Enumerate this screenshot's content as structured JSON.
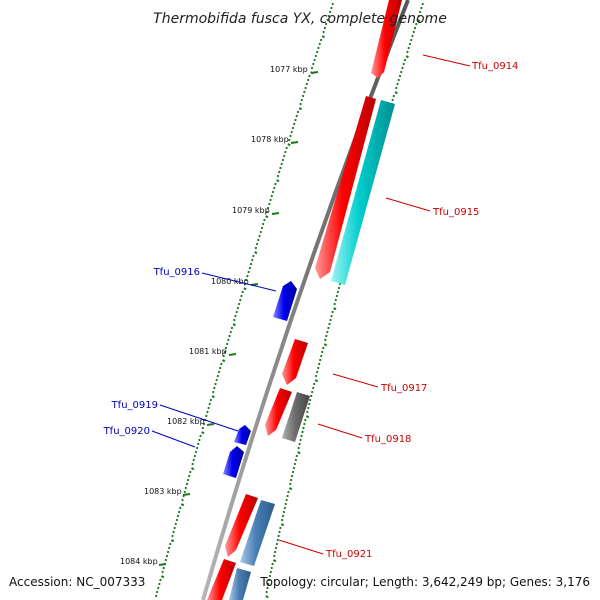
{
  "title": "Thermobifida fusca YX, complete genome",
  "accession": "Accession: NC_007333",
  "summary": "Topology: circular; Length: 3,642,249 bp; Genes: 3,176",
  "colors": {
    "backbone": "#808080",
    "forward_gene": "#ff0000",
    "reverse_gene": "#0000ff",
    "cyan_track": "#00cccc",
    "grey_track": "#707070",
    "steelblue_track": "#4a7fb5",
    "gc_plot": "#1a7a1a",
    "forward_label": "#cc0000",
    "reverse_label": "#0000bb"
  },
  "ticks": [
    "1077 kbp",
    "1078 kbp",
    "1079 kbp",
    "1080 kbp",
    "1081 kbp",
    "1082 kbp",
    "1083 kbp",
    "1084 kbp"
  ],
  "genes": [
    {
      "label": "Tfu_0914",
      "strand": "forward"
    },
    {
      "label": "Tfu_0915",
      "strand": "forward"
    },
    {
      "label": "Tfu_0916",
      "strand": "reverse"
    },
    {
      "label": "Tfu_0917",
      "strand": "forward"
    },
    {
      "label": "Tfu_0918",
      "strand": "forward"
    },
    {
      "label": "Tfu_0919",
      "strand": "reverse"
    },
    {
      "label": "Tfu_0920",
      "strand": "reverse"
    },
    {
      "label": "Tfu_0921",
      "strand": "forward"
    }
  ]
}
